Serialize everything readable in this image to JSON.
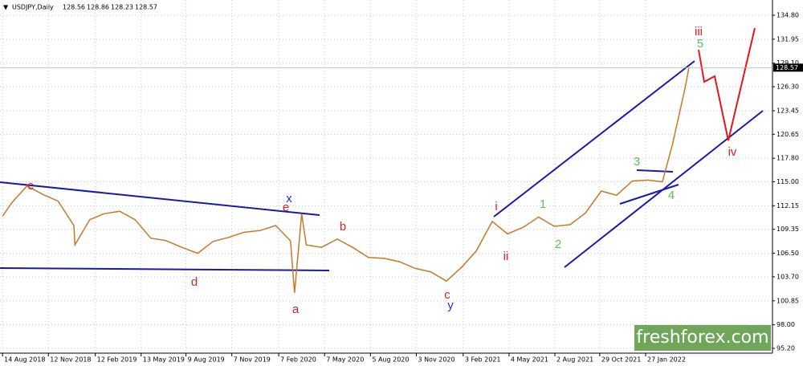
{
  "chart_data": {
    "type": "line",
    "title": "USDJPY,Daily",
    "ohlc": {
      "open": 128.56,
      "high": 128.86,
      "low": 128.23,
      "close": 128.57
    },
    "xlim": [
      "9 Aug 2018",
      "3 Oct 2022"
    ],
    "xticks": [
      "14 Aug 2018",
      "12 Nov 2018",
      "12 Feb 2019",
      "13 May 2019",
      "9 Aug 2019",
      "7 Nov 2019",
      "7 Feb 2020",
      "7 May 2020",
      "5 Aug 2020",
      "3 Nov 2020",
      "3 Feb 2021",
      "4 May 2021",
      "2 Aug 2021",
      "29 Oct 2021",
      "27 Jan 2022"
    ],
    "ylim": [
      95.2,
      134.8
    ],
    "yticks": [
      {
        "value": 95.2,
        "label": "95.20"
      },
      {
        "value": 98,
        "label": "98.00"
      },
      {
        "value": 100.85,
        "label": "100.85"
      },
      {
        "value": 103.7,
        "label": "103.70"
      },
      {
        "value": 106.5,
        "label": "106.50"
      },
      {
        "value": 109.35,
        "label": "109.35"
      },
      {
        "value": 112.15,
        "label": "112.15"
      },
      {
        "value": 115,
        "label": "115.00"
      },
      {
        "value": 117.8,
        "label": "117.80"
      },
      {
        "value": 120.65,
        "label": "120.65"
      },
      {
        "value": 123.45,
        "label": "123.45"
      },
      {
        "value": 126.3,
        "label": "126.30"
      },
      {
        "value": 129.1,
        "label": "129.10"
      },
      {
        "value": 131.95,
        "label": "131.95"
      },
      {
        "value": 134.8,
        "label": "134.80"
      }
    ],
    "grid": true,
    "x": [
      "14 Aug 2018",
      "1 Sep 2018",
      "1 Oct 2018",
      "1 Nov 2018",
      "1 Dec 2018",
      "1 Jan 2019",
      "3 Jan 2019",
      "1 Feb 2019",
      "1 Mar 2019",
      "1 Apr 2019",
      "1 May 2019",
      "1 Jun 2019",
      "1 Jul 2019",
      "1 Aug 2019",
      "1 Sep 2019",
      "1 Oct 2019",
      "1 Nov 2019",
      "1 Dec 2019",
      "1 Jan 2020",
      "1 Feb 2020",
      "1 Mar 2020",
      "9 Mar 2020",
      "23 Mar 2020",
      "1 Apr 2020",
      "1 May 2020",
      "1 Jun 2020",
      "1 Jul 2020",
      "1 Aug 2020",
      "1 Sep 2020",
      "1 Oct 2020",
      "1 Nov 2020",
      "1 Dec 2020",
      "1 Jan 2021",
      "1 Feb 2021",
      "1 Mar 2021",
      "1 Apr 2021",
      "1 May 2021",
      "1 Jun 2021",
      "1 Jul 2021",
      "1 Aug 2021",
      "1 Sep 2021",
      "1 Oct 2021",
      "1 Nov 2021",
      "1 Dec 2021",
      "1 Jan 2022",
      "1 Feb 2022",
      "1 Mar 2022",
      "21 Mar 2022",
      "1 Apr 2022",
      "15 Apr 2022",
      "22 Apr 2022"
    ],
    "series": [
      {
        "name": "USDJPY",
        "color": "#c8782a",
        "values": [
          110.9,
          112.5,
          114.5,
          113.5,
          112.7,
          109.8,
          107.5,
          110.5,
          111.2,
          111.5,
          110.5,
          108.3,
          108,
          107.2,
          106.5,
          107.9,
          108.4,
          109,
          109.2,
          109.8,
          108,
          101.8,
          111.2,
          107.5,
          107.2,
          108.2,
          107.2,
          106,
          105.9,
          105.5,
          104.7,
          104.3,
          103.2,
          104.9,
          106.8,
          110.3,
          108.8,
          109.6,
          110.8,
          109.7,
          109.9,
          111.3,
          113.9,
          113.4,
          115.1,
          115.2,
          115,
          119.5,
          122.5,
          126.3,
          128.57
        ]
      }
    ],
    "annotations": [
      {
        "text": "c",
        "color": "#e0201b"
      },
      {
        "text": "e",
        "color": "#e0201b"
      },
      {
        "text": "x",
        "color": "#1f2fd0"
      },
      {
        "text": "d",
        "color": "#e0201b"
      },
      {
        "text": "a",
        "color": "#e0201b"
      },
      {
        "text": "b",
        "color": "#e0201b"
      },
      {
        "text": "c",
        "color": "#e0201b"
      },
      {
        "text": "y",
        "color": "#1f2fd0"
      },
      {
        "text": "i",
        "color": "#e0201b"
      },
      {
        "text": "ii",
        "color": "#e0201b"
      },
      {
        "text": "1",
        "color": "#5cc05c"
      },
      {
        "text": "2",
        "color": "#5cc05c"
      },
      {
        "text": "3",
        "color": "#5cc05c"
      },
      {
        "text": "4",
        "color": "#5cc05c"
      },
      {
        "text": "5",
        "color": "#5cc05c"
      },
      {
        "text": "iii",
        "color": "#e0201b"
      },
      {
        "text": "iv",
        "color": "#e0201b"
      }
    ],
    "watermark": "freshforex.com"
  }
}
